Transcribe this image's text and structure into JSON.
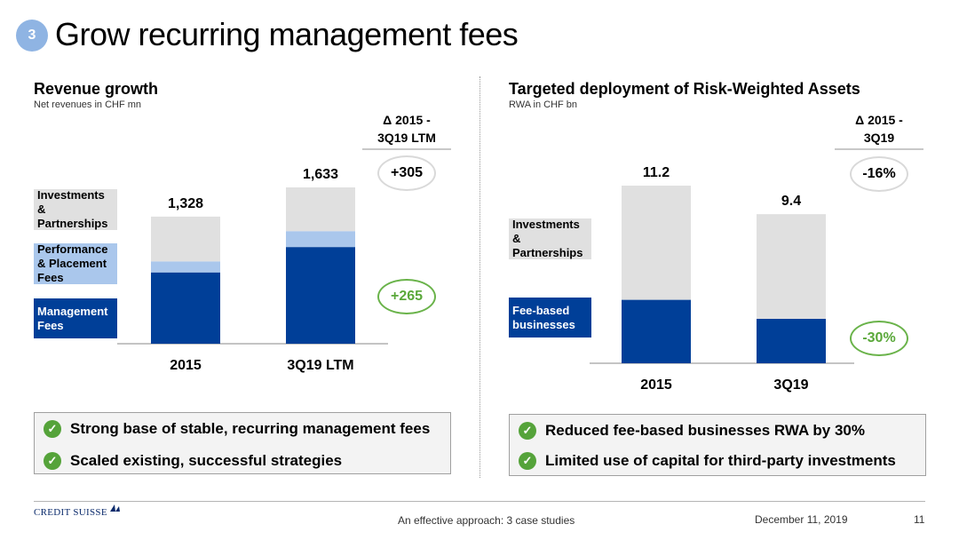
{
  "slide": {
    "number": "3",
    "title": "Grow recurring management fees"
  },
  "left": {
    "title": "Revenue growth",
    "subtitle": "Net revenues in CHF mn",
    "delta_header": [
      "Δ 2015 -",
      "3Q19 LTM"
    ],
    "delta_total": "+305",
    "delta_mgmt": "+265",
    "legend": [
      {
        "label": [
          "Investments &",
          "Partnerships"
        ],
        "style": "grey"
      },
      {
        "label": [
          "Performance",
          "& Placement",
          "Fees"
        ],
        "style": "light"
      },
      {
        "label": [
          "Management",
          "Fees"
        ],
        "style": "navy"
      }
    ],
    "bullets": [
      "Strong base of stable, recurring management fees",
      "Scaled existing, successful strategies"
    ]
  },
  "right": {
    "title": "Targeted deployment of Risk-Weighted Assets",
    "subtitle": "RWA in CHF bn",
    "delta_header": [
      "Δ 2015 -",
      "3Q19"
    ],
    "delta_total": "-16%",
    "delta_fee": "-30%",
    "legend": [
      {
        "label": [
          "Investments &",
          "Partnerships"
        ],
        "style": "grey"
      },
      {
        "label": [
          "Fee-based",
          "businesses"
        ],
        "style": "navy"
      }
    ],
    "bullets": [
      "Reduced fee-based businesses RWA by 30%",
      "Limited use of capital for third-party investments"
    ]
  },
  "footer": {
    "logo": "CREDIT SUISSE",
    "center": "An effective approach: 3 case studies",
    "date": "December 11, 2019",
    "page": "11"
  },
  "colors": {
    "navy": "#003f98",
    "light_blue": "#aac7ec",
    "grey": "#e0e0e0",
    "green": "#55a33a",
    "badge": "#8fb4e3"
  },
  "chart_data": [
    {
      "type": "bar",
      "stacked": true,
      "title": "Revenue growth",
      "subtitle": "Net revenues in CHF mn",
      "categories": [
        "2015",
        "3Q19 LTM"
      ],
      "totals": [
        1328,
        1633
      ],
      "series": [
        {
          "name": "Management Fees",
          "values": [
            745,
            1010
          ]
        },
        {
          "name": "Performance & Placement Fees",
          "values": [
            115,
            166
          ]
        },
        {
          "name": "Investments & Partnerships",
          "values": [
            468,
            457
          ]
        }
      ],
      "total_labels": [
        "1,328",
        "1,633"
      ]
    },
    {
      "type": "bar",
      "stacked": true,
      "title": "Targeted deployment of Risk-Weighted Assets",
      "subtitle": "RWA in CHF bn",
      "categories": [
        "2015",
        "3Q19"
      ],
      "totals": [
        11.2,
        9.4
      ],
      "series": [
        {
          "name": "Fee-based businesses",
          "values": [
            4.0,
            2.8
          ]
        },
        {
          "name": "Investments & Partnerships",
          "values": [
            7.2,
            6.6
          ]
        }
      ],
      "total_labels": [
        "11.2",
        "9.4"
      ]
    }
  ]
}
